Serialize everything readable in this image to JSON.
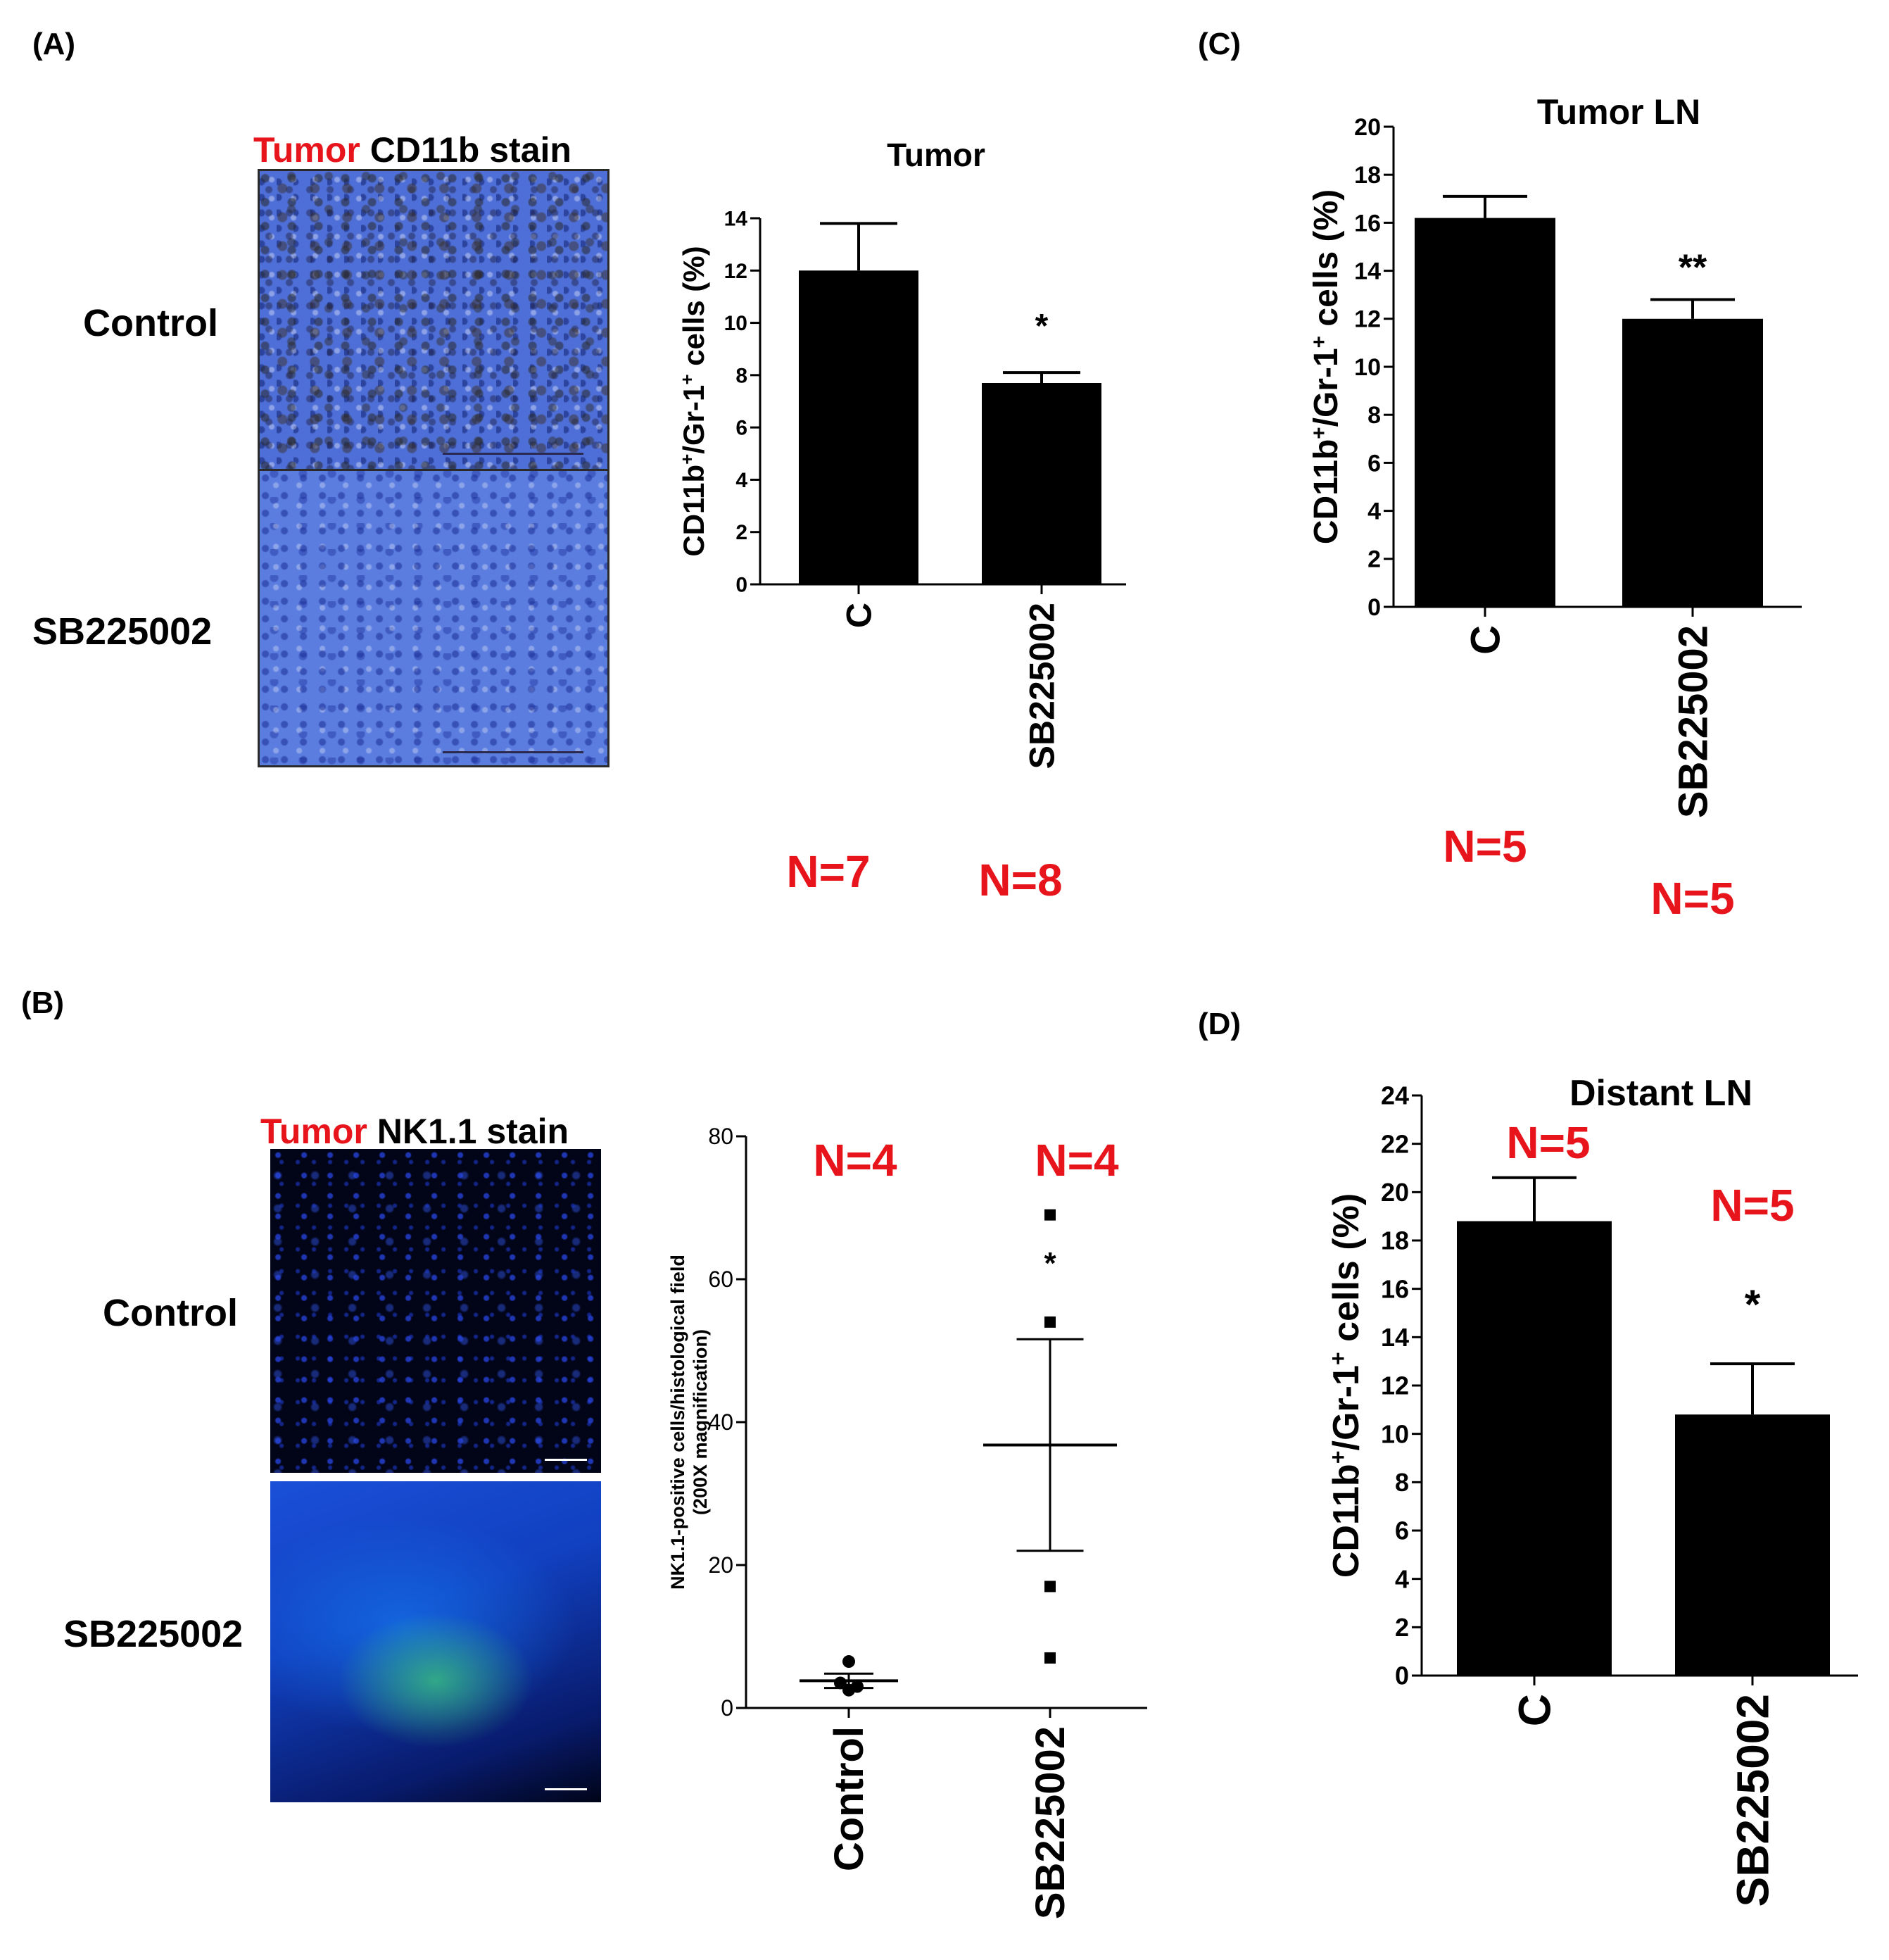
{
  "panels": {
    "A": {
      "label": "(A)",
      "stain_title": {
        "red": "Tumor",
        "black": " CD11b stain"
      },
      "row_labels": [
        "Control",
        "SB225002"
      ],
      "n_labels": [
        "N=7",
        "N=8"
      ]
    },
    "B": {
      "label": "(B)",
      "stain_title": {
        "red": "Tumor",
        "black": " NK1.1 stain"
      },
      "row_labels": [
        "Control",
        "SB225002"
      ],
      "n_labels": [
        "N=4",
        "N=4"
      ]
    },
    "C": {
      "label": "(C)",
      "n_labels": [
        "N=5",
        "N=5"
      ]
    },
    "D": {
      "label": "(D)",
      "n_labels": [
        "N=5",
        "N=5"
      ]
    }
  },
  "chart_data": [
    {
      "id": "A",
      "type": "bar",
      "title": "Tumor",
      "ylabel": "CD11b+/Gr-1+ cells (%)",
      "categories": [
        "C",
        "SB225002"
      ],
      "values": [
        12.0,
        7.7
      ],
      "errors": [
        1.8,
        0.4
      ],
      "ylim": [
        0,
        14
      ],
      "yticks": [
        0,
        2,
        4,
        6,
        8,
        10,
        12,
        14
      ],
      "annotations": [
        "",
        "*"
      ],
      "grid": false
    },
    {
      "id": "B",
      "type": "scatter",
      "ylabel": "NK1.1-positive cells/histological field",
      "ylabel2": "(200X magnification)",
      "categories": [
        "Control",
        "SB225002"
      ],
      "points": [
        [
          6.5,
          3.5,
          3,
          2.5
        ],
        [
          69,
          54,
          17,
          7
        ]
      ],
      "means": [
        3.8,
        36.8
      ],
      "sem": [
        1.0,
        14.8
      ],
      "ylim": [
        0,
        80
      ],
      "yticks": [
        0,
        20,
        40,
        60,
        80
      ],
      "annotations": [
        "",
        "*"
      ],
      "grid": false
    },
    {
      "id": "C",
      "type": "bar",
      "title": "Tumor LN",
      "ylabel": "CD11b+/Gr-1+ cells (%)",
      "categories": [
        "C",
        "SB225002"
      ],
      "values": [
        16.2,
        12.0
      ],
      "errors": [
        0.9,
        0.8
      ],
      "ylim": [
        0,
        20
      ],
      "yticks": [
        0,
        2,
        4,
        6,
        8,
        10,
        12,
        14,
        16,
        18,
        20
      ],
      "annotations": [
        "",
        "**"
      ],
      "grid": false
    },
    {
      "id": "D",
      "type": "bar",
      "title": "Distant LN",
      "ylabel": "CD11b+/Gr-1+ cells (%)",
      "categories": [
        "C",
        "SB225002"
      ],
      "values": [
        18.8,
        10.8
      ],
      "errors": [
        1.8,
        2.1
      ],
      "ylim": [
        0,
        24
      ],
      "yticks": [
        0,
        2,
        4,
        6,
        8,
        10,
        12,
        14,
        16,
        18,
        20,
        22,
        24
      ],
      "annotations": [
        "",
        "*"
      ],
      "grid": false
    }
  ]
}
